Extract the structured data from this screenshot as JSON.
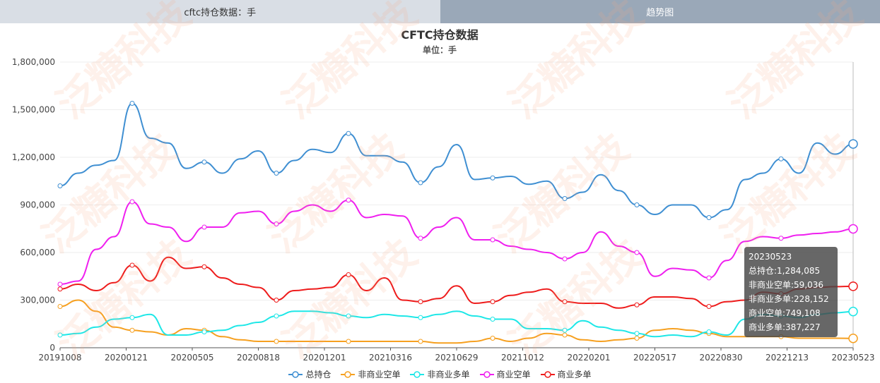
{
  "tabs": [
    {
      "label": "cftc持仓数据：手",
      "active": false
    },
    {
      "label": "趋势图",
      "active": true
    }
  ],
  "watermark": "泛糖科技",
  "chart_data": {
    "type": "line",
    "title": "CFTC持仓数据",
    "subtitle": "单位：手",
    "ylim": [
      0,
      1800000
    ],
    "yticks": [
      "0",
      "300,000",
      "600,000",
      "900,000",
      "1,200,000",
      "1,500,000",
      "1,800,000"
    ],
    "x_tick_labels": [
      "20191008",
      "20200121",
      "20200505",
      "20200818",
      "20201201",
      "20210316",
      "20210629",
      "20211012",
      "20220201",
      "20220517",
      "20220830",
      "20221213",
      "20230523"
    ],
    "grid": true,
    "legend_position": "bottom",
    "series": [
      {
        "name": "总持仓",
        "color": "#3f8fd2",
        "values": [
          1020000,
          1100000,
          1150000,
          1180000,
          1540000,
          1320000,
          1290000,
          1130000,
          1170000,
          1100000,
          1190000,
          1240000,
          1100000,
          1180000,
          1250000,
          1230000,
          1350000,
          1210000,
          1210000,
          1170000,
          1040000,
          1140000,
          1280000,
          1060000,
          1070000,
          1080000,
          1030000,
          1050000,
          940000,
          980000,
          1090000,
          990000,
          900000,
          840000,
          900000,
          900000,
          820000,
          870000,
          1060000,
          1100000,
          1190000,
          1100000,
          1290000,
          1220000,
          1284085
        ]
      },
      {
        "name": "非商业空单",
        "color": "#f6a020",
        "values": [
          260000,
          300000,
          230000,
          130000,
          110000,
          100000,
          80000,
          120000,
          110000,
          70000,
          50000,
          40000,
          40000,
          40000,
          40000,
          40000,
          40000,
          40000,
          40000,
          40000,
          40000,
          30000,
          30000,
          40000,
          60000,
          40000,
          60000,
          90000,
          80000,
          50000,
          40000,
          50000,
          60000,
          110000,
          120000,
          110000,
          90000,
          70000,
          70000,
          70000,
          70000,
          60000,
          60000,
          60000,
          59036
        ]
      },
      {
        "name": "非商业多单",
        "color": "#1ee7e7",
        "values": [
          80000,
          90000,
          130000,
          180000,
          190000,
          210000,
          80000,
          80000,
          100000,
          110000,
          140000,
          160000,
          200000,
          230000,
          230000,
          220000,
          200000,
          190000,
          210000,
          200000,
          190000,
          210000,
          230000,
          200000,
          180000,
          180000,
          120000,
          120000,
          110000,
          170000,
          130000,
          110000,
          90000,
          70000,
          80000,
          70000,
          100000,
          80000,
          180000,
          210000,
          200000,
          190000,
          210000,
          220000,
          228152
        ]
      },
      {
        "name": "商业空单",
        "color": "#ef1fef",
        "values": [
          400000,
          420000,
          620000,
          700000,
          920000,
          780000,
          760000,
          670000,
          760000,
          760000,
          850000,
          860000,
          780000,
          860000,
          900000,
          860000,
          930000,
          820000,
          840000,
          830000,
          690000,
          760000,
          820000,
          680000,
          680000,
          640000,
          620000,
          600000,
          560000,
          600000,
          730000,
          640000,
          600000,
          450000,
          500000,
          490000,
          440000,
          550000,
          670000,
          700000,
          690000,
          710000,
          720000,
          730000,
          749108
        ]
      },
      {
        "name": "商业多单",
        "color": "#ee1c1c",
        "values": [
          370000,
          400000,
          360000,
          410000,
          520000,
          420000,
          570000,
          500000,
          510000,
          440000,
          400000,
          380000,
          300000,
          360000,
          370000,
          380000,
          460000,
          360000,
          440000,
          300000,
          290000,
          310000,
          390000,
          280000,
          290000,
          330000,
          350000,
          370000,
          290000,
          280000,
          280000,
          250000,
          270000,
          320000,
          320000,
          310000,
          260000,
          290000,
          300000,
          350000,
          340000,
          370000,
          380000,
          385000,
          387227
        ]
      }
    ],
    "tooltip": {
      "date": "20230523",
      "lines": [
        "总持仓:1,284,085",
        "非商业空单:59,036",
        "非商业多单:228,152",
        "商业空单:749,108",
        "商业多单:387,227"
      ]
    }
  }
}
